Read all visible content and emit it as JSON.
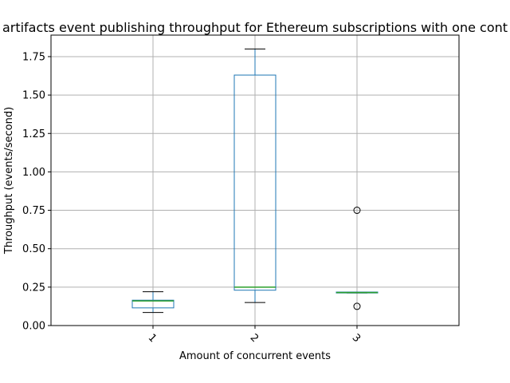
{
  "chart_data": {
    "type": "box",
    "title": "artifacts event publishing throughput for Ethereum subscriptions with one cont",
    "xlabel": "Amount of concurrent events",
    "ylabel": "Throughput (events/second)",
    "ylim": [
      0,
      1.89
    ],
    "yticks": [
      "0.00",
      "0.25",
      "0.50",
      "0.75",
      "1.00",
      "1.25",
      "1.50",
      "1.75"
    ],
    "categories": [
      "1",
      "2",
      "3"
    ],
    "grid": true,
    "boxes": [
      {
        "category": "1",
        "whisker_low": 0.085,
        "q1": 0.115,
        "median": 0.16,
        "q3": 0.165,
        "whisker_high": 0.22,
        "outliers": []
      },
      {
        "category": "2",
        "whisker_low": 0.15,
        "q1": 0.23,
        "median": 0.25,
        "q3": 1.63,
        "whisker_high": 1.8,
        "outliers": []
      },
      {
        "category": "3",
        "whisker_low": 0.212,
        "q1": 0.212,
        "median": 0.215,
        "q3": 0.218,
        "whisker_high": 0.218,
        "outliers": [
          0.75,
          0.125
        ]
      }
    ],
    "colors": {
      "box": "#1f77b4",
      "median": "#2ca02c",
      "whisker": "#000000",
      "grid": "#b0b0b0"
    }
  }
}
